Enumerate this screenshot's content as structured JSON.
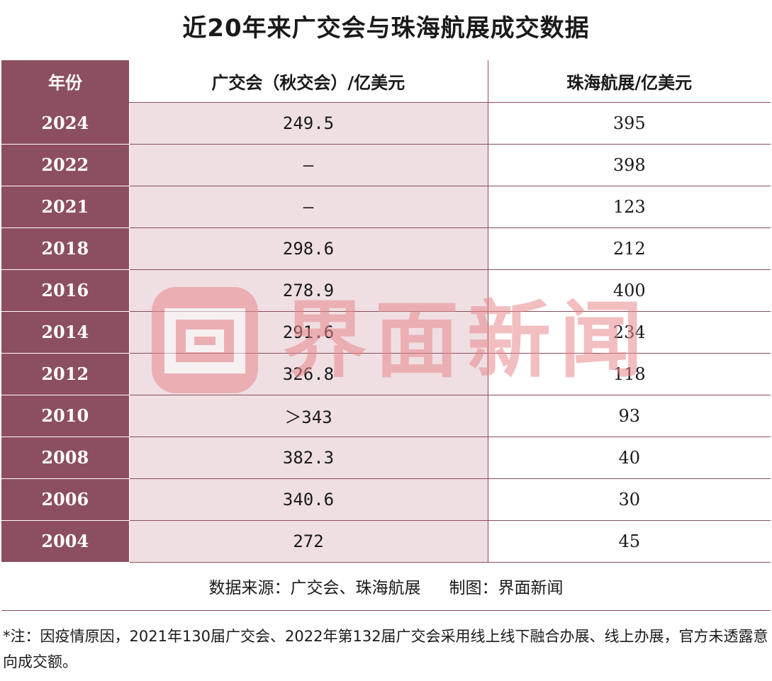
{
  "title": "近20年来广交会与珠海航展成交数据",
  "table": {
    "headers": [
      "年份",
      "广交会（秋交会）/亿美元",
      "珠海航展/亿美元"
    ],
    "rows": [
      {
        "year": "2024",
        "canton_fair": "249.5",
        "zhuhai": "395"
      },
      {
        "year": "2022",
        "canton_fair": "–",
        "zhuhai": "398"
      },
      {
        "year": "2021",
        "canton_fair": "–",
        "zhuhai": "123"
      },
      {
        "year": "2018",
        "canton_fair": "298.6",
        "zhuhai": "212"
      },
      {
        "year": "2016",
        "canton_fair": "278.9",
        "zhuhai": "400"
      },
      {
        "year": "2014",
        "canton_fair": "291.6",
        "zhuhai": "234"
      },
      {
        "year": "2012",
        "canton_fair": "326.8",
        "zhuhai": "118"
      },
      {
        "year": "2010",
        "canton_fair": "＞343",
        "zhuhai": "93"
      },
      {
        "year": "2008",
        "canton_fair": "382.3",
        "zhuhai": "40"
      },
      {
        "year": "2006",
        "canton_fair": "340.6",
        "zhuhai": "30"
      },
      {
        "year": "2004",
        "canton_fair": "272",
        "zhuhai": "45"
      }
    ]
  },
  "watermark": {
    "text": "界面新闻",
    "logo_icon": "jiemian-logo-icon",
    "color": "#e9898d"
  },
  "footer": {
    "source": "数据来源：广交会、珠海航展",
    "credit": "制图：界面新闻",
    "note": "*注：因疫情原因，2021年130届广交会、2022年第132届广交会采用线上线下融合办展、线上办展，官方未透露意向成交额。"
  },
  "colors": {
    "header_accent": "#8c4f5f",
    "canton_column_bg": "#efdfe2",
    "border": "#8a4d5c"
  }
}
